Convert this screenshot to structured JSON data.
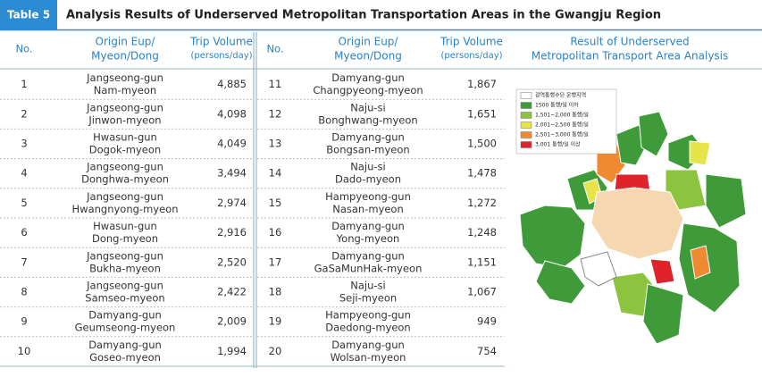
{
  "header": {
    "label": "Table 5",
    "title": "Analysis Results of Underserved Metropolitan Transportation Areas in the Gwangju Region"
  },
  "columns": {
    "no": "No.",
    "origin": [
      "Origin Eup/",
      "Myeon/Dong"
    ],
    "volume": [
      "Trip Volume",
      "(persons/day)"
    ],
    "map": [
      "Result of Underserved",
      "Metropolitan Transport Area Analysis"
    ]
  },
  "rows": [
    {
      "no": "1",
      "origin": [
        "Jangseong-gun",
        "Nam-myeon"
      ],
      "volume": "4,885"
    },
    {
      "no": "2",
      "origin": [
        "Jangseong-gun",
        "Jinwon-myeon"
      ],
      "volume": "4,098"
    },
    {
      "no": "3",
      "origin": [
        "Hwasun-gun",
        "Dogok-myeon"
      ],
      "volume": "4,049"
    },
    {
      "no": "4",
      "origin": [
        "Jangseong-gun",
        "Donghwa-myeon"
      ],
      "volume": "3,494"
    },
    {
      "no": "5",
      "origin": [
        "Jangseong-gun",
        "Hwangnyong-myeon"
      ],
      "volume": "2,974"
    },
    {
      "no": "6",
      "origin": [
        "Hwasun-gun",
        "Dong-myeon"
      ],
      "volume": "2,916"
    },
    {
      "no": "7",
      "origin": [
        "Jangseong-gun",
        "Bukha-myeon"
      ],
      "volume": "2,520"
    },
    {
      "no": "8",
      "origin": [
        "Jangseong-gun",
        "Samseo-myeon"
      ],
      "volume": "2,422"
    },
    {
      "no": "9",
      "origin": [
        "Damyang-gun",
        "Geumseong-myeon"
      ],
      "volume": "2,009"
    },
    {
      "no": "10",
      "origin": [
        "Damyang-gun",
        "Goseo-myeon"
      ],
      "volume": "1,994"
    },
    {
      "no": "11",
      "origin": [
        "Damyang-gun",
        "Changpyeong-myeon"
      ],
      "volume": "1,867"
    },
    {
      "no": "12",
      "origin": [
        "Naju-si",
        "Bonghwang-myeon"
      ],
      "volume": "1,651"
    },
    {
      "no": "13",
      "origin": [
        "Damyang-gun",
        "Bongsan-myeon"
      ],
      "volume": "1,500"
    },
    {
      "no": "14",
      "origin": [
        "Naju-si",
        "Dado-myeon"
      ],
      "volume": "1,478"
    },
    {
      "no": "15",
      "origin": [
        "Hampyeong-gun",
        "Nasan-myeon"
      ],
      "volume": "1,272"
    },
    {
      "no": "16",
      "origin": [
        "Damyang-gun",
        "Yong-myeon"
      ],
      "volume": "1,248"
    },
    {
      "no": "17",
      "origin": [
        "Damyang-gun",
        "GaSaMunHak-myeon"
      ],
      "volume": "1,151"
    },
    {
      "no": "18",
      "origin": [
        "Naju-si",
        "Seji-myeon"
      ],
      "volume": "1,067"
    },
    {
      "no": "19",
      "origin": [
        "Hampyeong-gun",
        "Daedong-myeon"
      ],
      "volume": "949"
    },
    {
      "no": "20",
      "origin": [
        "Damyang-gun",
        "Wolsan-myeon"
      ],
      "volume": "754"
    }
  ],
  "legend": [
    {
      "label": "광역통행수단 운행지역",
      "color": "#ffffff"
    },
    {
      "label": "1500 통행/일 이하",
      "color": "#3f9a3a"
    },
    {
      "label": "1,501~2,000 통행/일",
      "color": "#8cc43f"
    },
    {
      "label": "2,001~2,500 통행/일",
      "color": "#e6e44a"
    },
    {
      "label": "2,501~3,000 통행/일",
      "color": "#f08a32"
    },
    {
      "label": "3,001 통행/일 이상",
      "color": "#e0232a"
    }
  ]
}
